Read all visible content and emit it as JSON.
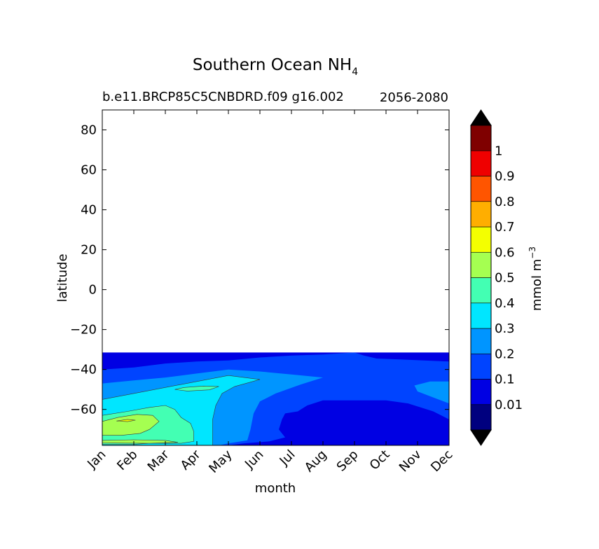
{
  "chart_data": {
    "type": "contour",
    "title": "Southern Ocean NH",
    "title_subscript": "4",
    "subtitle_left": "b.e11.BRCP85C5CNBDRD.f09 g16.002",
    "subtitle_right": "2056-2080",
    "xlabel": "month",
    "ylabel": "latitude",
    "x_ticks": [
      "Jan",
      "Feb",
      "Mar",
      "Apr",
      "May",
      "Jun",
      "Jul",
      "Aug",
      "Sep",
      "Oct",
      "Nov",
      "Dec"
    ],
    "xlim": [
      0,
      11
    ],
    "y_ticks": [
      80,
      60,
      40,
      20,
      0,
      -20,
      -40,
      -60
    ],
    "y_tick_labels": [
      "80",
      "60",
      "40",
      "20",
      "0",
      "−20",
      "−40",
      "−60"
    ],
    "ylim": [
      -78,
      90
    ],
    "data_lat_range": [
      -78,
      -31.5
    ],
    "colorbar": {
      "label": "mmol m",
      "label_superscript": "−3",
      "levels": [
        0.01,
        0.1,
        0.2,
        0.3,
        0.4,
        0.5,
        0.6,
        0.7,
        0.8,
        0.9,
        1
      ],
      "level_labels": [
        "0.01",
        "0.1",
        "0.2",
        "0.3",
        "0.4",
        "0.5",
        "0.6",
        "0.7",
        "0.8",
        "0.9",
        "1"
      ],
      "colors": [
        "#00007f",
        "#0000e3",
        "#0044ff",
        "#0095ff",
        "#00e6ff",
        "#43ffb3",
        "#a5ff51",
        "#f4ff00",
        "#ffae00",
        "#ff5500",
        "#ef0000",
        "#7f0000"
      ],
      "extend": "both",
      "extend_color": "#000000"
    },
    "regions": [
      {
        "level_index": 1,
        "points": [
          [
            0,
            -31.5
          ],
          [
            11,
            -31.5
          ],
          [
            11,
            -78
          ],
          [
            0,
            -78
          ]
        ]
      },
      {
        "level_index": 2,
        "points": [
          [
            0,
            -40
          ],
          [
            1,
            -39
          ],
          [
            2,
            -37
          ],
          [
            3,
            -36
          ],
          [
            4,
            -35.5
          ],
          [
            5,
            -34
          ],
          [
            6,
            -33
          ],
          [
            7,
            -32.5
          ],
          [
            8,
            -31.5
          ],
          [
            8.3,
            -33
          ],
          [
            8.7,
            -34.5
          ],
          [
            9.5,
            -35
          ],
          [
            11,
            -36
          ],
          [
            11,
            -65
          ],
          [
            10.5,
            -61
          ],
          [
            9.7,
            -57
          ],
          [
            9,
            -55.5
          ],
          [
            7,
            -55.5
          ],
          [
            6.5,
            -58
          ],
          [
            6.2,
            -61
          ],
          [
            5.8,
            -62
          ],
          [
            5.7,
            -65
          ],
          [
            5.6,
            -70
          ],
          [
            5.8,
            -74
          ],
          [
            5.3,
            -76
          ],
          [
            4.5,
            -77
          ],
          [
            4,
            -78
          ],
          [
            0,
            -78
          ]
        ]
      },
      {
        "level_index": 3,
        "points": [
          [
            0,
            -47
          ],
          [
            1,
            -45.5
          ],
          [
            2,
            -44
          ],
          [
            3,
            -42
          ],
          [
            4,
            -40
          ],
          [
            5,
            -41
          ],
          [
            6,
            -42.5
          ],
          [
            7,
            -44
          ],
          [
            6.3,
            -47.5
          ],
          [
            5.5,
            -52
          ],
          [
            5,
            -56
          ],
          [
            4.8,
            -62
          ],
          [
            4.7,
            -70
          ],
          [
            4.6,
            -75.5
          ],
          [
            4,
            -77
          ],
          [
            3.7,
            -78
          ],
          [
            0,
            -78
          ]
        ]
      },
      {
        "level_index": 3,
        "points": [
          [
            11,
            -46
          ],
          [
            10.4,
            -46
          ],
          [
            9.9,
            -48
          ],
          [
            10,
            -51
          ],
          [
            10.5,
            -54
          ],
          [
            11,
            -57
          ]
        ]
      },
      {
        "level_index": 4,
        "points": [
          [
            0,
            -55
          ],
          [
            1,
            -52
          ],
          [
            2,
            -49
          ],
          [
            3,
            -46
          ],
          [
            4,
            -43
          ],
          [
            5,
            -45
          ],
          [
            4.2,
            -48.5
          ],
          [
            3.8,
            -52
          ],
          [
            3.6,
            -58
          ],
          [
            3.5,
            -65
          ],
          [
            3.5,
            -78
          ],
          [
            0,
            -78
          ]
        ]
      },
      {
        "level_index": 5,
        "points": [
          [
            0,
            -63
          ],
          [
            0.8,
            -61
          ],
          [
            1.5,
            -59
          ],
          [
            2,
            -58
          ],
          [
            2.3,
            -60
          ],
          [
            2.5,
            -64
          ],
          [
            2.8,
            -67
          ],
          [
            2.9,
            -71
          ],
          [
            2.9,
            -76
          ],
          [
            2.5,
            -77
          ],
          [
            2,
            -77
          ],
          [
            1.5,
            -77
          ],
          [
            1,
            -77.5
          ],
          [
            0,
            -77.5
          ]
        ]
      },
      {
        "level_index": 5,
        "points": [
          [
            2.3,
            -50
          ],
          [
            2.6,
            -49
          ],
          [
            3.2,
            -48.3
          ],
          [
            3.7,
            -48.5
          ],
          [
            3.4,
            -50.2
          ],
          [
            2.7,
            -50.8
          ]
        ]
      },
      {
        "level_index": 6,
        "points": [
          [
            0,
            -66
          ],
          [
            0.5,
            -64
          ],
          [
            1.1,
            -62.5
          ],
          [
            1.6,
            -63
          ],
          [
            1.8,
            -66
          ],
          [
            1.5,
            -70
          ],
          [
            1.2,
            -72
          ],
          [
            0.6,
            -73
          ],
          [
            0,
            -73
          ]
        ]
      },
      {
        "level_index": 6,
        "points": [
          [
            0,
            -75.5
          ],
          [
            1,
            -75.2
          ],
          [
            2,
            -75.5
          ],
          [
            2.4,
            -76.5
          ],
          [
            1.5,
            -77
          ],
          [
            0,
            -76.8
          ]
        ]
      },
      {
        "level_index": 7,
        "points": [
          [
            0.45,
            -65.8
          ],
          [
            0.8,
            -65
          ],
          [
            1.05,
            -65.4
          ],
          [
            0.8,
            -66.1
          ]
        ]
      }
    ]
  }
}
